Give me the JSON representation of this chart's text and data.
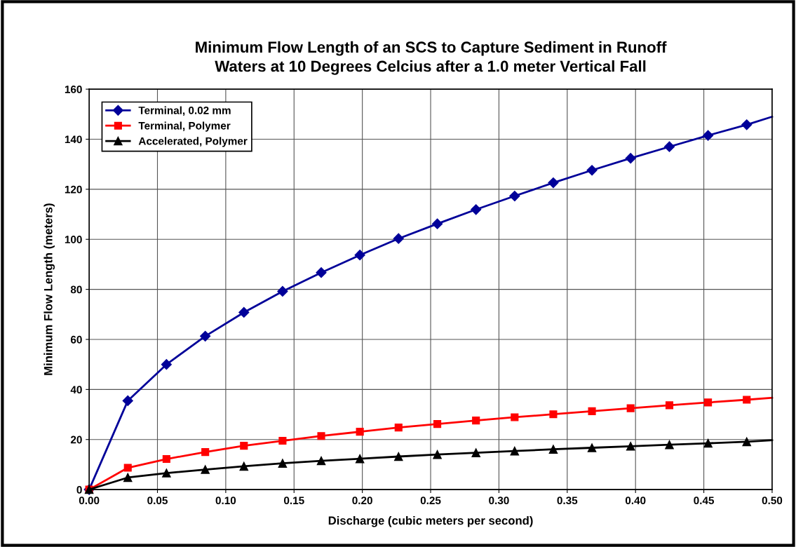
{
  "chart_data": {
    "type": "line",
    "title": "Minimum Flow Length of an SCS to Capture Sediment in Runoff\nWaters at 10 Degrees Celcius after a 1.0 meter Vertical Fall",
    "xlabel": "Discharge (cubic meters per second)",
    "ylabel": "Minimum Flow Length (meters)",
    "x": [
      0,
      0.0283,
      0.0566,
      0.085,
      0.1133,
      0.1416,
      0.1699,
      0.1982,
      0.2265,
      0.2549,
      0.2832,
      0.3115,
      0.3398,
      0.3681,
      0.3964,
      0.4248,
      0.4531,
      0.4814,
      0.5
    ],
    "series": [
      {
        "name": "Terminal, 0.02 mm",
        "color": "#000099",
        "marker": "diamond",
        "values": [
          0,
          35.5,
          50,
          61.3,
          70.8,
          79.2,
          86.7,
          93.7,
          100.3,
          106.2,
          111.9,
          117.3,
          122.6,
          127.6,
          132.4,
          137,
          141.5,
          145.8,
          149
        ]
      },
      {
        "name": "Terminal, Polymer",
        "color": "#ff0000",
        "marker": "square",
        "values": [
          0,
          8.7,
          12.2,
          15,
          17.5,
          19.5,
          21.4,
          23.1,
          24.8,
          26.2,
          27.6,
          28.9,
          30.1,
          31.3,
          32.5,
          33.7,
          34.8,
          35.9,
          36.7
        ]
      },
      {
        "name": "Accelerated, Polymer",
        "color": "#000000",
        "marker": "triangle",
        "values": [
          0,
          4.8,
          6.6,
          8.0,
          9.3,
          10.5,
          11.5,
          12.3,
          13.2,
          14.0,
          14.7,
          15.4,
          16.1,
          16.7,
          17.3,
          17.9,
          18.5,
          19.1,
          19.7
        ]
      }
    ],
    "xlim": [
      0,
      0.5
    ],
    "xticks": [
      {
        "value": 0,
        "label": "0.00"
      },
      {
        "value": 0.05,
        "label": "0.05"
      },
      {
        "value": 0.1,
        "label": "0.10"
      },
      {
        "value": 0.15,
        "label": "0.15"
      },
      {
        "value": 0.2,
        "label": "0.20"
      },
      {
        "value": 0.25,
        "label": "0.25"
      },
      {
        "value": 0.3,
        "label": "0.30"
      },
      {
        "value": 0.35,
        "label": "0.35"
      },
      {
        "value": 0.4,
        "label": "0.40"
      },
      {
        "value": 0.45,
        "label": "0.45"
      },
      {
        "value": 0.5,
        "label": "0.50"
      }
    ],
    "ylim": [
      0,
      160
    ],
    "yticks": [
      0,
      20,
      40,
      60,
      80,
      100,
      120,
      140,
      160
    ],
    "grid": true,
    "legend": "top left",
    "line_style": "solid"
  }
}
